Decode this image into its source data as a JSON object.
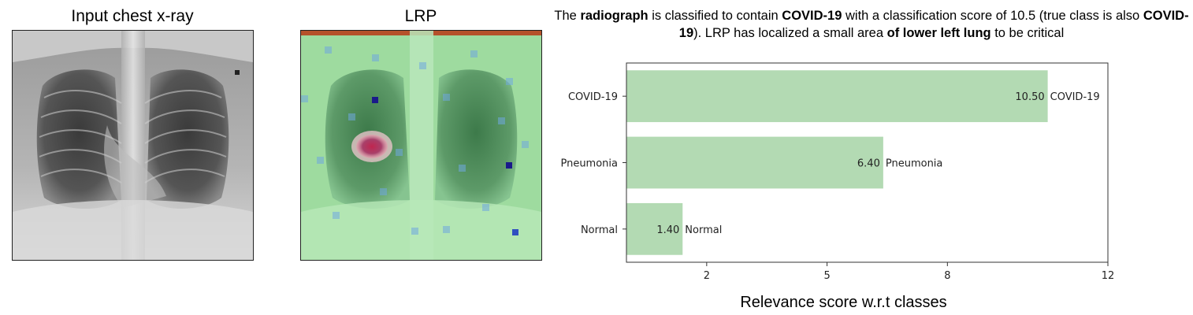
{
  "panels": {
    "input_title": "Input chest x-ray",
    "lrp_title": "LRP"
  },
  "caption": {
    "parts": [
      {
        "text": "The ",
        "bold": false
      },
      {
        "text": "radiograph",
        "bold": true
      },
      {
        "text": " is classified to contain ",
        "bold": false
      },
      {
        "text": "COVID-19",
        "bold": true
      },
      {
        "text": " with a classification score of 10.5 (true class is also ",
        "bold": false
      },
      {
        "text": "COVID-19",
        "bold": true
      },
      {
        "text": "). LRP has localized a small area ",
        "bold": false
      },
      {
        "text": "of lower left lung",
        "bold": true
      },
      {
        "text": " to be critical",
        "bold": false
      }
    ]
  },
  "colors": {
    "bar": "#b3dab3",
    "axis": "#333333",
    "lrp_overlay": "#8fe09a",
    "lrp_hotspot": "#c0264f"
  },
  "chart_data": {
    "type": "bar",
    "orientation": "horizontal",
    "categories": [
      "COVID-19",
      "Pneumonia",
      "Normal"
    ],
    "values": [
      10.5,
      6.4,
      1.4
    ],
    "value_labels": [
      "10.50",
      "6.40",
      "1.40"
    ],
    "bar_end_labels": [
      "COVID-19",
      "Pneumonia",
      "Normal"
    ],
    "xticks": [
      2,
      5,
      8,
      12
    ],
    "xlim": [
      0,
      12
    ],
    "xlabel": "Relevance score w.r.t classes",
    "ylabel": "",
    "title": ""
  }
}
